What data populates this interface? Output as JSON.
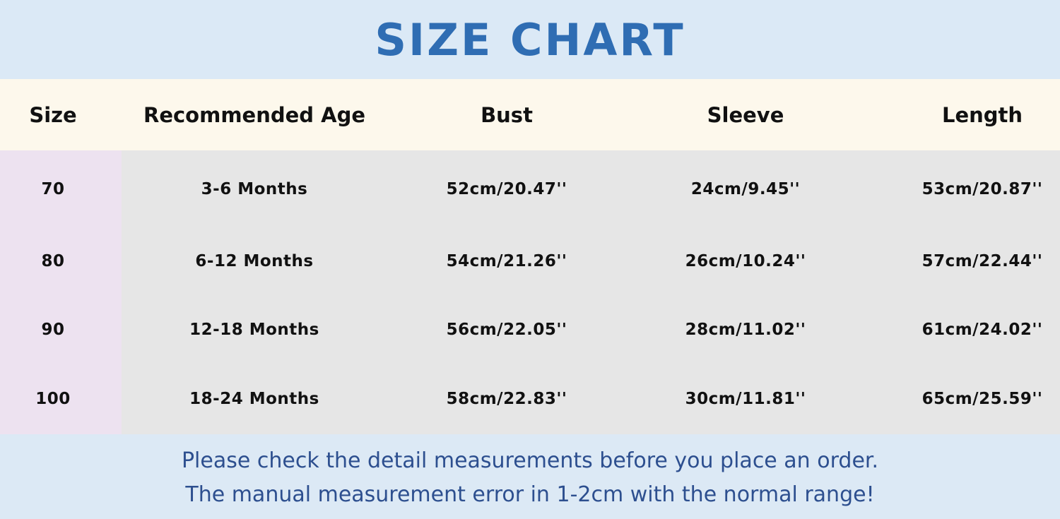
{
  "title": "SIZE CHART",
  "colors": {
    "title": "#2f6db3",
    "title_band": "#dbe9f6",
    "header_band": "#fdf8ec",
    "size_column": "#ede2f0",
    "body": "#e6e6e6",
    "footer_text": "#2d4f8f"
  },
  "table": {
    "headers": [
      "Size",
      "Recommended Age",
      "Bust",
      "Sleeve",
      "Length"
    ],
    "rows": [
      [
        "70",
        "3-6 Months",
        "52cm/20.47''",
        "24cm/9.45''",
        "53cm/20.87''"
      ],
      [
        "80",
        "6-12 Months",
        "54cm/21.26''",
        "26cm/10.24''",
        "57cm/22.44''"
      ],
      [
        "90",
        "12-18 Months",
        "56cm/22.05''",
        "28cm/11.02''",
        "61cm/24.02''"
      ],
      [
        "100",
        "18-24 Months",
        "58cm/22.83''",
        "30cm/11.81''",
        "65cm/25.59''"
      ]
    ]
  },
  "footer": {
    "line1": "Please check the detail measurements before you place an order.",
    "line2": "The manual measurement error in 1-2cm with the normal range!"
  }
}
